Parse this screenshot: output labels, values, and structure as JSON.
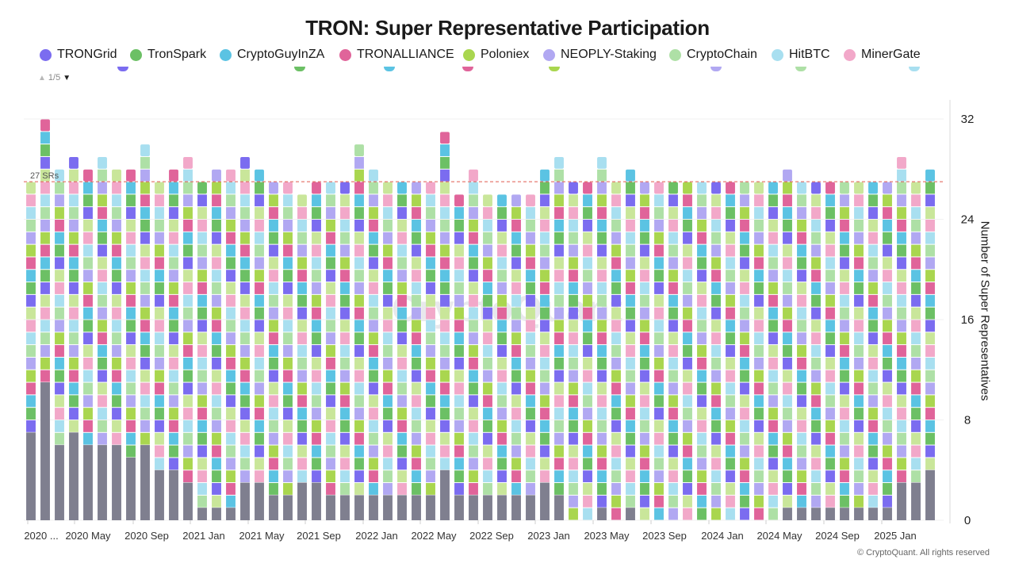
{
  "title": "TRON: Super Representative Participation",
  "legend": {
    "items": [
      {
        "label": "TRONGrid",
        "color": "#7b6cf0"
      },
      {
        "label": "TronSpark",
        "color": "#6cc065"
      },
      {
        "label": "CryptoGuyInZA",
        "color": "#5bc3e3"
      },
      {
        "label": "TRONALLIANCE",
        "color": "#e0649a"
      },
      {
        "label": "Poloniex",
        "color": "#a9d64f"
      },
      {
        "label": "NEOPLY-Staking",
        "color": "#b1a8f2"
      },
      {
        "label": "CryptoChain",
        "color": "#aee0a6"
      },
      {
        "label": "HitBTC",
        "color": "#a8dff0"
      },
      {
        "label": "MinerGate",
        "color": "#f2a8c9"
      }
    ],
    "page": "1/5"
  },
  "copyright": "© CryptoQuant. All rights reserved",
  "watermark": "CryptoQuant",
  "chart_data": {
    "type": "bar",
    "stacked": true,
    "ylabel": "Number of Super Representatives",
    "ylim": [
      0,
      32
    ],
    "yticks": [
      0,
      8,
      16,
      24,
      32
    ],
    "yaxis_position": "right",
    "x_tick_labels": [
      "2020 ...",
      "2020 May",
      "2020 Sep",
      "2021 Jan",
      "2021 May",
      "2021 Sep",
      "2022 Jan",
      "2022 May",
      "2022 Sep",
      "2023 Jan",
      "2023 May",
      "2023 Sep",
      "2024 Jan",
      "2024 May",
      "2024 Sep",
      "2025 Jan"
    ],
    "reference_line": {
      "value": 27,
      "label": "27 SRs",
      "color": "#e05a4f",
      "style": "dashed"
    },
    "other_color": "#7f7f8f",
    "palette": [
      "#7b6cf0",
      "#6cc065",
      "#5bc3e3",
      "#e0649a",
      "#a9d64f",
      "#b1a8f2",
      "#aee0a6",
      "#a8dff0",
      "#f2a8c9",
      "#c9e69a"
    ],
    "totals": [
      27,
      32,
      28,
      29,
      28,
      29,
      28,
      28,
      30,
      27,
      28,
      29,
      27,
      28,
      28,
      29,
      28,
      27,
      27,
      26,
      27,
      27,
      27,
      30,
      28,
      27,
      27,
      27,
      27,
      31,
      26,
      28,
      26,
      26,
      26,
      26,
      28,
      29,
      27,
      27,
      29,
      27,
      28,
      27,
      27,
      27,
      27,
      27,
      27,
      27,
      27,
      27,
      27,
      28,
      27,
      27,
      27,
      27,
      27,
      27,
      27,
      29,
      27,
      28
    ],
    "other_values": [
      7,
      11,
      6,
      7,
      6,
      6,
      6,
      5,
      6,
      4,
      4,
      3,
      1,
      1,
      1,
      3,
      3,
      2,
      2,
      3,
      3,
      2,
      2,
      2,
      2,
      2,
      2,
      2,
      2,
      4,
      2,
      2,
      2,
      2,
      2,
      2,
      3,
      2,
      0,
      0,
      1,
      0,
      1,
      0,
      0,
      0,
      0,
      0,
      0,
      0,
      0,
      0,
      0,
      1,
      1,
      1,
      1,
      1,
      1,
      1,
      1,
      3,
      3,
      4
    ]
  }
}
